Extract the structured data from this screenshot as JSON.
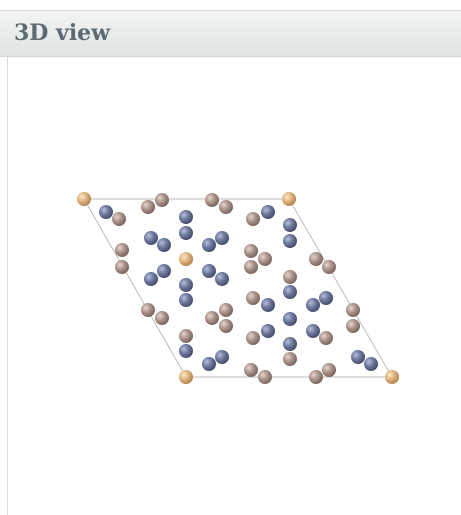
{
  "header": {
    "title": "3D view"
  }
}
